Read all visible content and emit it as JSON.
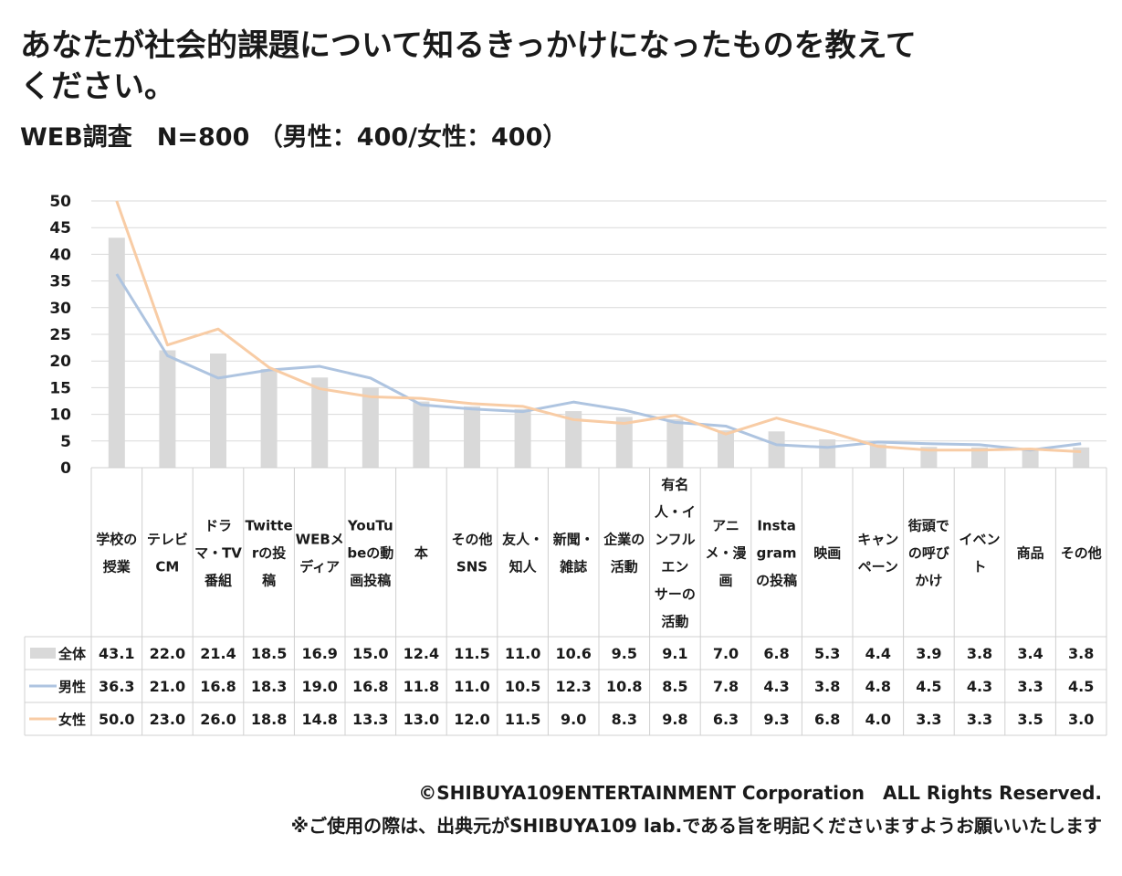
{
  "title": "あなたが社会的課題について知るきっかけになったものを教えてください。",
  "subtitle": "WEB調査　N=800 （男性：400/女性：400）",
  "footer": {
    "copyright": "©SHIBUYA109ENTERTAINMENT Corporation　ALL Rights Reserved.",
    "notice": "※ご使用の際は、出典元がSHIBUYA109 lab.である旨を明記くださいますようお願いいたします"
  },
  "colors": {
    "bar": "#d9d9d9",
    "male": "#aec4e0",
    "female": "#f8cca5",
    "grid": "#d9d9d9",
    "border": "#d0d0d0"
  },
  "chart_data": {
    "type": "bar",
    "y_ticks": [
      "0",
      "5",
      "10",
      "15",
      "20",
      "25",
      "30",
      "35",
      "40",
      "45",
      "50"
    ],
    "ylim": [
      0,
      50
    ],
    "grid": true,
    "legend": "data table",
    "categories": [
      [
        "学校の",
        "授業"
      ],
      [
        "テレビ",
        "CM"
      ],
      [
        "ドラ",
        "マ・TV",
        "番組"
      ],
      [
        "Twitte",
        "rの投",
        "稿"
      ],
      [
        "WEBメ",
        "ディア"
      ],
      [
        "YouTu",
        "beの動",
        "画投稿"
      ],
      [
        "本"
      ],
      [
        "その他",
        "SNS"
      ],
      [
        "友人・",
        "知人"
      ],
      [
        "新聞・",
        "雑誌"
      ],
      [
        "企業の",
        "活動"
      ],
      [
        "有名",
        "人・イ",
        "ンフル",
        "エン",
        "サーの",
        "活動"
      ],
      [
        "アニ",
        "メ・漫",
        "画"
      ],
      [
        "Insta",
        "gram",
        "の投稿"
      ],
      [
        "映画"
      ],
      [
        "キャン",
        "ペーン"
      ],
      [
        "街頭で",
        "の呼び",
        "かけ"
      ],
      [
        "イベン",
        "ト"
      ],
      [
        "商品"
      ],
      [
        "その他"
      ]
    ],
    "series": [
      {
        "name": "全体",
        "render": "bar",
        "values": [
          43.1,
          22.0,
          21.4,
          18.5,
          16.9,
          15.0,
          12.4,
          11.5,
          11.0,
          10.6,
          9.5,
          9.1,
          7.0,
          6.8,
          5.3,
          4.4,
          3.9,
          3.8,
          3.4,
          3.8
        ],
        "labels": [
          "43.1",
          "22.0",
          "21.4",
          "18.5",
          "16.9",
          "15.0",
          "12.4",
          "11.5",
          "11.0",
          "10.6",
          "9.5",
          "9.1",
          "7.0",
          "6.8",
          "5.3",
          "4.4",
          "3.9",
          "3.8",
          "3.4",
          "3.8"
        ]
      },
      {
        "name": "男性",
        "render": "line",
        "values": [
          36.3,
          21.0,
          16.8,
          18.3,
          19.0,
          16.8,
          11.8,
          11.0,
          10.5,
          12.3,
          10.8,
          8.5,
          7.8,
          4.3,
          3.8,
          4.8,
          4.5,
          4.3,
          3.3,
          4.5
        ],
        "labels": [
          "36.3",
          "21.0",
          "16.8",
          "18.3",
          "19.0",
          "16.8",
          "11.8",
          "11.0",
          "10.5",
          "12.3",
          "10.8",
          "8.5",
          "7.8",
          "4.3",
          "3.8",
          "4.8",
          "4.5",
          "4.3",
          "3.3",
          "4.5"
        ]
      },
      {
        "name": "女性",
        "render": "line",
        "values": [
          50.0,
          23.0,
          26.0,
          18.8,
          14.8,
          13.3,
          13.0,
          12.0,
          11.5,
          9.0,
          8.3,
          9.8,
          6.3,
          9.3,
          6.8,
          4.0,
          3.3,
          3.3,
          3.5,
          3.0
        ],
        "labels": [
          "50.0",
          "23.0",
          "26.0",
          "18.8",
          "14.8",
          "13.3",
          "13.0",
          "12.0",
          "11.5",
          "9.0",
          "8.3",
          "9.8",
          "6.3",
          "9.3",
          "6.8",
          "4.0",
          "3.3",
          "3.3",
          "3.5",
          "3.0"
        ]
      }
    ]
  }
}
